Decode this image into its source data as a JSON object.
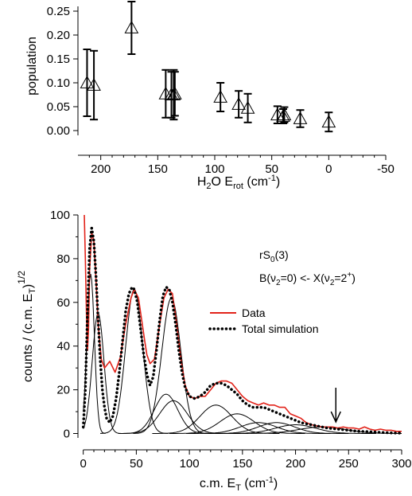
{
  "chart_data": [
    {
      "type": "scatter",
      "marker": "open-triangle",
      "error_bars": true,
      "xlabel": "H2O Erot (cm-1)",
      "xlabel_parts": {
        "base": "H",
        "sub1": "2",
        "mid": "O E",
        "sub2": "rot",
        "unit": " (cm",
        "sup": "-1",
        "close": ")"
      },
      "ylabel": "population",
      "xlim": [
        220,
        -50
      ],
      "ylim": [
        -0.01,
        0.26
      ],
      "xticks": [
        "200",
        "150",
        "100",
        "50",
        "0",
        "-50"
      ],
      "yticks": [
        "0.00",
        "0.05",
        "0.10",
        "0.15",
        "0.20",
        "0.25"
      ],
      "points": [
        {
          "x": 212,
          "y": 0.1,
          "err": 0.07
        },
        {
          "x": 206,
          "y": 0.095,
          "err": 0.072
        },
        {
          "x": 173,
          "y": 0.215,
          "err": 0.055
        },
        {
          "x": 143,
          "y": 0.077,
          "err": 0.05
        },
        {
          "x": 138,
          "y": 0.075,
          "err": 0.048
        },
        {
          "x": 136,
          "y": 0.075,
          "err": 0.052
        },
        {
          "x": 135,
          "y": 0.077,
          "err": 0.046
        },
        {
          "x": 95,
          "y": 0.07,
          "err": 0.03
        },
        {
          "x": 79,
          "y": 0.055,
          "err": 0.028
        },
        {
          "x": 71,
          "y": 0.047,
          "err": 0.03
        },
        {
          "x": 45,
          "y": 0.033,
          "err": 0.018
        },
        {
          "x": 40,
          "y": 0.03,
          "err": 0.015
        },
        {
          "x": 39,
          "y": 0.033,
          "err": 0.016
        },
        {
          "x": 25,
          "y": 0.025,
          "err": 0.018
        },
        {
          "x": 0,
          "y": 0.018,
          "err": 0.02
        }
      ]
    },
    {
      "type": "line",
      "xlabel": "c.m. ET (cm-1)",
      "xlabel_parts": {
        "base": "c.m. E",
        "sub": "T",
        "unit": " (cm",
        "sup": "-1",
        "close": ")"
      },
      "ylabel": "counts / (c.m. ET)1/2",
      "ylabel_parts": {
        "base": "counts / (c.m. E",
        "sub": "T",
        "close": ")",
        "sup": "1/2"
      },
      "xlim": [
        -5,
        300
      ],
      "ylim": [
        -2,
        100
      ],
      "xticks": [
        "0",
        "50",
        "100",
        "150",
        "200",
        "250",
        "300"
      ],
      "yticks": [
        "0",
        "20",
        "40",
        "60",
        "80",
        "100"
      ],
      "annotation_line1": {
        "base": "rS",
        "sub": "0",
        "rest": "(3)"
      },
      "annotation_line2": {
        "a": "B(ν",
        "sub1": "2",
        "b": "=0) <- X(ν",
        "sub2": "2",
        "c": "=2",
        "sup": "+",
        "d": ")"
      },
      "arrow_at_x": 238,
      "colors": {
        "data": "#e2231a",
        "simulation": "#000000",
        "components": "#000000"
      },
      "series": [
        {
          "name": "Data",
          "x": [
            1,
            2,
            3,
            4,
            5,
            6,
            8,
            10,
            12,
            14,
            17,
            20,
            25,
            30,
            35,
            40,
            45,
            48,
            52,
            55,
            58,
            60,
            63,
            67,
            72,
            76,
            80,
            84,
            88,
            92,
            96,
            100,
            105,
            110,
            115,
            120,
            125,
            130,
            135,
            140,
            145,
            150,
            155,
            160,
            165,
            170,
            175,
            180,
            185,
            190,
            195,
            200,
            205,
            210,
            215,
            220,
            225,
            230,
            235,
            240,
            245,
            250,
            255,
            260,
            265,
            270,
            275,
            280,
            285,
            290,
            295,
            300
          ],
          "y": [
            100,
            80,
            55,
            38,
            48,
            75,
            92,
            88,
            70,
            50,
            34,
            30,
            33,
            28,
            35,
            50,
            62,
            66,
            62,
            52,
            42,
            36,
            32,
            34,
            50,
            62,
            66,
            64,
            50,
            34,
            22,
            17,
            16,
            17,
            17,
            20,
            23,
            24,
            24,
            23,
            20,
            17,
            15,
            14,
            13,
            14,
            13,
            13,
            12,
            12,
            9,
            8,
            7,
            5,
            4,
            3.5,
            3,
            3,
            3,
            2.5,
            3,
            2.5,
            2.5,
            2,
            3,
            2,
            1.5,
            2,
            1.5,
            1.5,
            1,
            1
          ]
        },
        {
          "name": "Total simulation",
          "x": [
            0,
            2,
            4,
            6,
            8,
            10,
            12,
            14,
            16,
            18,
            20,
            22,
            25,
            28,
            31,
            34,
            37,
            40,
            43,
            46,
            48,
            51,
            54,
            57,
            60,
            63,
            66,
            69,
            72,
            75,
            78,
            81,
            84,
            87,
            90,
            93,
            96,
            100,
            105,
            110,
            115,
            120,
            125,
            130,
            135,
            140,
            145,
            150,
            155,
            160,
            165,
            170,
            175,
            180,
            185,
            190,
            195,
            200,
            205,
            210,
            215,
            220,
            225,
            230,
            240,
            250,
            260,
            270,
            280,
            290,
            300
          ],
          "y": [
            3,
            20,
            55,
            85,
            94,
            88,
            72,
            52,
            34,
            20,
            12,
            7,
            5,
            8,
            16,
            28,
            42,
            56,
            64,
            67,
            66,
            60,
            48,
            36,
            27,
            22,
            26,
            38,
            52,
            63,
            67,
            66,
            60,
            50,
            38,
            28,
            21,
            17,
            16,
            17,
            19,
            22,
            23,
            23,
            22,
            20,
            18,
            15,
            13,
            12,
            12,
            12,
            11,
            10,
            9,
            8,
            7,
            6,
            5,
            4.5,
            4,
            3.5,
            3,
            2.5,
            2,
            1.5,
            1,
            0.8,
            0.5,
            0.3,
            0.2
          ]
        }
      ],
      "components": [
        {
          "center": 7,
          "amp": 73,
          "width": 3.5
        },
        {
          "center": 14,
          "amp": 55,
          "width": 5.5
        },
        {
          "center": 48,
          "amp": 66,
          "width": 8
        },
        {
          "center": 78,
          "amp": 18,
          "width": 11
        },
        {
          "center": 83,
          "amp": 62,
          "width": 9
        },
        {
          "center": 85,
          "amp": 15,
          "width": 13
        },
        {
          "center": 125,
          "amp": 13,
          "width": 15
        },
        {
          "center": 145,
          "amp": 9,
          "width": 16
        },
        {
          "center": 165,
          "amp": 5,
          "width": 17
        },
        {
          "center": 182,
          "amp": 5,
          "width": 17
        },
        {
          "center": 200,
          "amp": 4,
          "width": 19
        },
        {
          "center": 225,
          "amp": 3,
          "width": 22
        }
      ]
    }
  ]
}
